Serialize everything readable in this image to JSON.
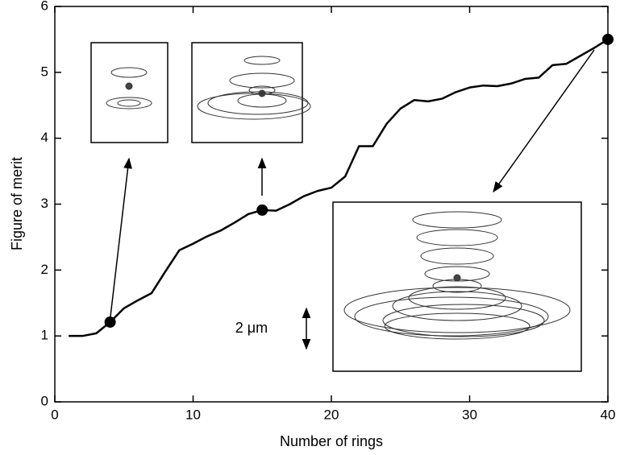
{
  "chart_data": {
    "type": "line",
    "x_label": "Number of rings",
    "y_label": "Figure of merit",
    "x": [
      1,
      2,
      3,
      4,
      5,
      6,
      7,
      8,
      9,
      10,
      11,
      12,
      13,
      14,
      15,
      16,
      17,
      18,
      19,
      20,
      21,
      22,
      23,
      24,
      25,
      26,
      27,
      28,
      29,
      30,
      31,
      32,
      33,
      34,
      35,
      36,
      37,
      38,
      39,
      40
    ],
    "values": [
      1.0,
      1.0,
      1.04,
      1.21,
      1.42,
      1.54,
      1.65,
      1.98,
      2.3,
      2.4,
      2.51,
      2.6,
      2.72,
      2.85,
      2.91,
      2.9,
      3.0,
      3.12,
      3.2,
      3.25,
      3.42,
      3.88,
      3.88,
      4.22,
      4.45,
      4.58,
      4.56,
      4.6,
      4.7,
      4.77,
      4.8,
      4.79,
      4.83,
      4.9,
      4.92,
      5.11,
      5.13,
      5.25,
      5.37,
      5.5
    ],
    "color": "#000000",
    "markers": {
      "x": [
        4,
        15,
        40
      ],
      "values": [
        1.21,
        2.91,
        5.5
      ]
    },
    "xlim": [
      0,
      40
    ],
    "xticks": [
      0,
      10,
      20,
      30,
      40
    ],
    "ylim": [
      0,
      6
    ],
    "yticks": [
      0,
      1,
      2,
      3,
      4,
      5,
      6
    ],
    "annotation": "2 μm"
  }
}
